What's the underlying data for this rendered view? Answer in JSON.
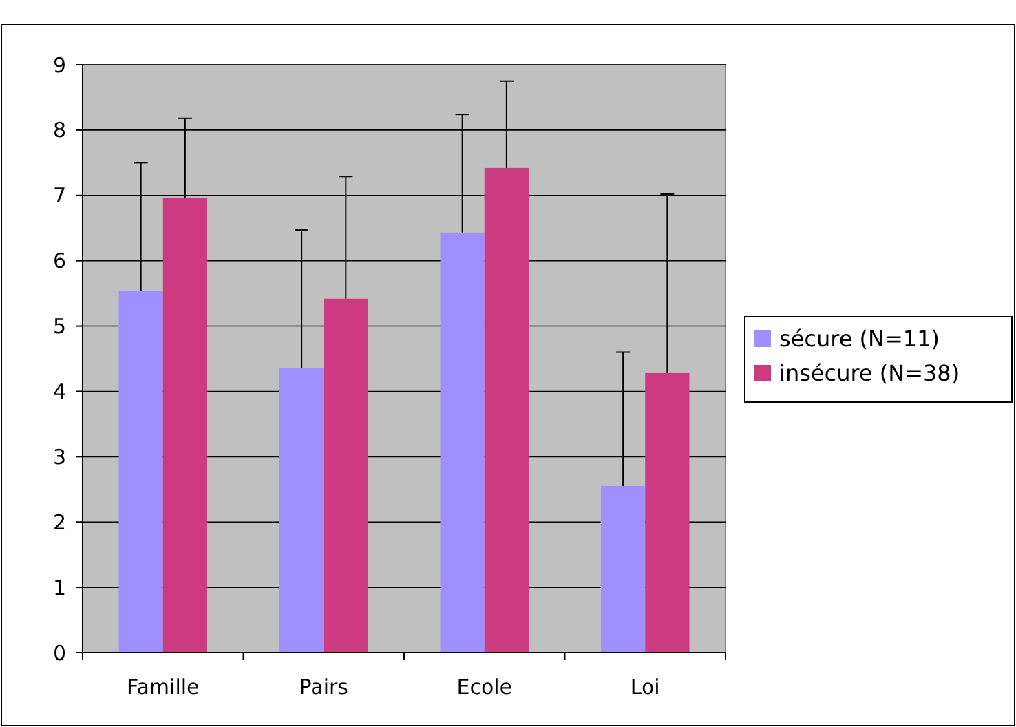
{
  "chart_data": {
    "type": "bar",
    "categories": [
      "Famille",
      "Pairs",
      "Ecole",
      "Loi"
    ],
    "series": [
      {
        "name": "sécure (N=11)",
        "color": "#9f8fff",
        "values": [
          5.54,
          4.36,
          6.43,
          2.55
        ],
        "errors": [
          1.96,
          2.11,
          1.81,
          2.05
        ]
      },
      {
        "name": "insécure (N=38)",
        "color": "#cc3a7f",
        "values": [
          6.96,
          5.42,
          7.42,
          4.28
        ],
        "errors": [
          1.22,
          1.87,
          1.33,
          2.74
        ]
      }
    ],
    "ylim": [
      0,
      9
    ],
    "yticks": [
      0,
      1,
      2,
      3,
      4,
      5,
      6,
      7,
      8,
      9
    ],
    "grid": "y",
    "legend": "right"
  }
}
